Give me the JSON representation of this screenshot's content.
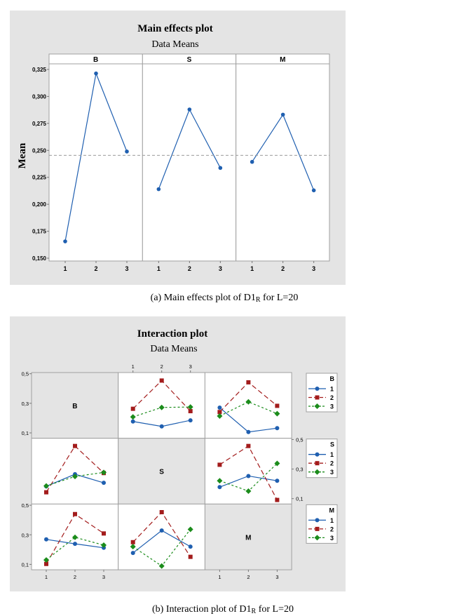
{
  "colors": {
    "background": "#e4e4e4",
    "series1": "#1f5fb0",
    "series2": "#a31c1c",
    "series3": "#1b8c1b",
    "reference": "#9a9a9a"
  },
  "chart_data": [
    {
      "type": "line",
      "title": "Main effects plot",
      "subtitle": "Data Means",
      "ylabel": "Mean",
      "ylim": [
        0.15,
        0.325
      ],
      "yticks": [
        {
          "value": 0.15,
          "label": "0,150"
        },
        {
          "value": 0.175,
          "label": "0,175"
        },
        {
          "value": 0.2,
          "label": "0,200"
        },
        {
          "value": 0.225,
          "label": "0,225"
        },
        {
          "value": 0.25,
          "label": "0,250"
        },
        {
          "value": 0.275,
          "label": "0,275"
        },
        {
          "value": 0.3,
          "label": "0,300"
        },
        {
          "value": 0.325,
          "label": "0,325"
        }
      ],
      "reference_line": 0.2454,
      "panels": [
        {
          "factor": "B",
          "levels": [
            "1",
            "2",
            "3"
          ],
          "values": [
            0.1656,
            0.3213,
            0.2489
          ]
        },
        {
          "factor": "S",
          "levels": [
            "1",
            "2",
            "3"
          ],
          "values": [
            0.214,
            0.2879,
            0.2337
          ]
        },
        {
          "factor": "M",
          "levels": [
            "1",
            "2",
            "3"
          ],
          "values": [
            0.2393,
            0.2831,
            0.2129
          ]
        }
      ],
      "caption": {
        "prefix": "(a)  Main effects plot of D1",
        "sub": "R",
        "suffix": " for L=20"
      }
    },
    {
      "type": "line",
      "title": "Interaction plot",
      "subtitle": "Data Means",
      "factors": [
        "B",
        "S",
        "M"
      ],
      "levels": [
        "1",
        "2",
        "3"
      ],
      "ylim": [
        0.1,
        0.5
      ],
      "yticks": [
        {
          "value": 0.5,
          "label": "0,5"
        },
        {
          "value": 0.3,
          "label": "0,3"
        },
        {
          "value": 0.1,
          "label": "0,1"
        }
      ],
      "panels": [
        {
          "row": "B",
          "col": "S",
          "series": [
            {
              "name": "1",
              "values": [
                0.177,
                0.144,
                0.185
              ]
            },
            {
              "name": "2",
              "values": [
                0.263,
                0.454,
                0.247
              ]
            },
            {
              "name": "3",
              "values": [
                0.208,
                0.272,
                0.275
              ]
            }
          ]
        },
        {
          "row": "B",
          "col": "M",
          "series": [
            {
              "name": "1",
              "values": [
                0.271,
                0.106,
                0.132
              ]
            },
            {
              "name": "2",
              "values": [
                0.241,
                0.442,
                0.283
              ]
            },
            {
              "name": "3",
              "values": [
                0.214,
                0.31,
                0.23
              ]
            }
          ]
        },
        {
          "row": "S",
          "col": "B",
          "series": [
            {
              "name": "1",
              "values": [
                0.183,
                0.265,
                0.207
              ]
            },
            {
              "name": "2",
              "values": [
                0.143,
                0.456,
                0.273
              ]
            },
            {
              "name": "3",
              "values": [
                0.186,
                0.25,
                0.277
              ]
            }
          ]
        },
        {
          "row": "S",
          "col": "M",
          "series": [
            {
              "name": "1",
              "values": [
                0.178,
                0.253,
                0.221
              ]
            },
            {
              "name": "2",
              "values": [
                0.329,
                0.456,
                0.091
              ]
            },
            {
              "name": "3",
              "values": [
                0.221,
                0.151,
                0.338
              ]
            }
          ]
        },
        {
          "row": "M",
          "col": "B",
          "series": [
            {
              "name": "1",
              "values": [
                0.269,
                0.239,
                0.212
              ]
            },
            {
              "name": "2",
              "values": [
                0.103,
                0.44,
                0.309
              ]
            },
            {
              "name": "3",
              "values": [
                0.13,
                0.283,
                0.23
              ]
            }
          ]
        },
        {
          "row": "M",
          "col": "S",
          "series": [
            {
              "name": "1",
              "values": [
                0.177,
                0.329,
                0.22
              ]
            },
            {
              "name": "2",
              "values": [
                0.25,
                0.453,
                0.151
              ]
            },
            {
              "name": "3",
              "values": [
                0.22,
                0.089,
                0.337
              ]
            }
          ]
        }
      ],
      "legends": [
        {
          "title": "B",
          "entries": [
            "1",
            "2",
            "3"
          ]
        },
        {
          "title": "S",
          "entries": [
            "1",
            "2",
            "3"
          ]
        },
        {
          "title": "M",
          "entries": [
            "1",
            "2",
            "3"
          ]
        }
      ],
      "caption": {
        "prefix": "(b) Interaction plot of D1",
        "sub": "R",
        "suffix": " for L=20"
      }
    }
  ]
}
